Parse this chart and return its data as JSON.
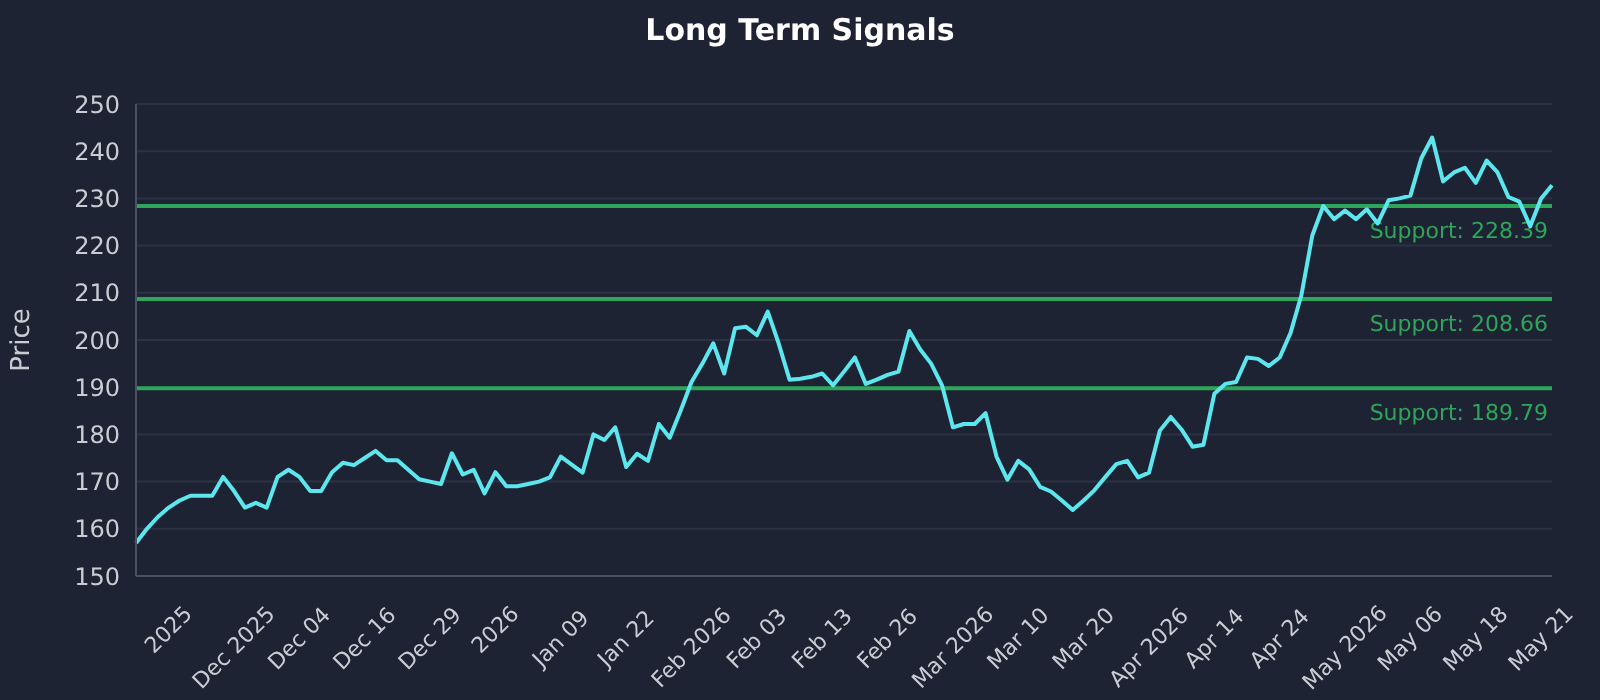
{
  "chart_data": {
    "type": "line",
    "title": "Long Term Signals",
    "ylabel": "Price",
    "categories": [
      null,
      null,
      null,
      "2025",
      null,
      null,
      null,
      null,
      null,
      "Dec 2025",
      null,
      null,
      null,
      null,
      null,
      "Dec 04",
      null,
      null,
      null,
      null,
      null,
      "Dec 16",
      null,
      null,
      null,
      null,
      null,
      "Dec 29",
      null,
      null,
      null,
      null,
      null,
      "2026",
      null,
      null,
      null,
      null,
      null,
      "Jan 09",
      null,
      null,
      null,
      null,
      null,
      "Jan 22",
      null,
      null,
      null,
      null,
      null,
      "Feb 2026",
      null,
      null,
      null,
      null,
      null,
      "Feb 03",
      null,
      null,
      null,
      null,
      null,
      "Feb 13",
      null,
      null,
      null,
      null,
      null,
      "Feb 26",
      null,
      null,
      null,
      null,
      null,
      "Mar 2026",
      null,
      null,
      null,
      null,
      null,
      "Mar 10",
      null,
      null,
      null,
      null,
      null,
      "Mar 20",
      null,
      null,
      null,
      null,
      null,
      "Apr 2026",
      null,
      null,
      null,
      null,
      null,
      "Apr 14",
      null,
      null,
      null,
      null,
      null,
      "Apr 24",
      null,
      null,
      null,
      null,
      null,
      "May 2026",
      null,
      null,
      null,
      null,
      null,
      "May 06",
      null,
      null,
      null,
      null,
      null,
      "May 18",
      null,
      null,
      null,
      null,
      null,
      "May 21",
      null
    ],
    "series": [
      {
        "color": "#5ce6ee",
        "values": [
          157,
          160,
          162.5,
          164.5,
          166,
          167,
          167,
          167,
          171,
          168,
          164.5,
          165.5,
          164.5,
          171,
          172.5,
          171,
          168,
          168,
          172,
          174,
          173.5,
          175,
          176.5,
          174.5,
          174.5,
          172.5,
          170.5,
          170,
          169.5,
          176,
          171.5,
          172.5,
          167.5,
          172,
          169,
          169,
          169.5,
          170,
          170.9,
          175.3,
          173.6,
          171.9,
          180,
          178.8,
          181.5,
          173.1,
          175.9,
          174.4,
          182.2,
          179.3,
          185,
          191.1,
          195,
          199.3,
          192.9,
          202.5,
          202.8,
          201,
          206,
          199.3,
          191.6,
          191.8,
          192.2,
          192.9,
          190.4,
          193.3,
          196.3,
          190.7,
          191.6,
          192.6,
          193.3,
          201.9,
          198,
          195,
          190.4,
          181.5,
          182.2,
          182.2,
          184.5,
          175.3,
          170.4,
          174.4,
          172.6,
          168.9,
          167.9,
          166,
          164,
          166,
          168.2,
          171,
          173.7,
          174.4,
          170.9,
          171.9,
          180.8,
          183.7,
          181,
          177.4,
          177.8,
          188.6,
          190.7,
          191.1,
          196.3,
          196,
          194.5,
          196.3,
          201.5,
          209.6,
          222.2,
          228.4,
          225.6,
          227.4,
          225.6,
          227.7,
          224.7,
          229.6,
          230,
          230.6,
          238.5,
          242.9,
          233.6,
          235.5,
          236.5,
          233.3,
          238,
          235.5,
          230.3,
          229.3,
          224.1,
          230,
          232.8
        ]
      }
    ],
    "ylim": [
      150,
      250
    ],
    "yticks": [
      150,
      160,
      170,
      180,
      190,
      200,
      210,
      220,
      230,
      240,
      250
    ],
    "grid": "y",
    "marker": "none",
    "line_style": "solid",
    "ref_lines": [
      {
        "axis": "y",
        "value": 228.39,
        "label": "Support: 228.39",
        "color": "#2ea55a"
      },
      {
        "axis": "y",
        "value": 208.66,
        "label": "Support: 208.66",
        "color": "#2ea55a"
      },
      {
        "axis": "y",
        "value": 189.79,
        "label": "Support: 189.79",
        "color": "#2ea55a"
      }
    ]
  }
}
